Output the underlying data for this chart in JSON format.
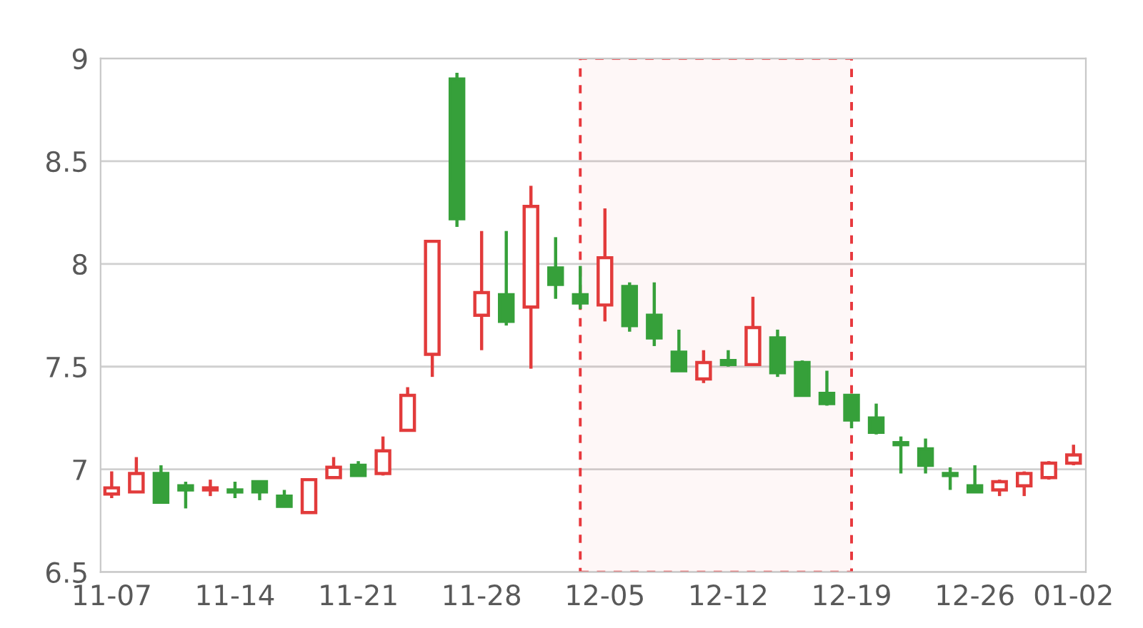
{
  "chart_data": {
    "type": "candlestick",
    "categories": [
      "11-07",
      null,
      null,
      null,
      null,
      "11-14",
      null,
      null,
      null,
      null,
      "11-21",
      null,
      null,
      null,
      null,
      "11-28",
      null,
      null,
      null,
      null,
      "12-05",
      null,
      null,
      null,
      null,
      "12-12",
      null,
      null,
      null,
      null,
      "12-19",
      null,
      null,
      null,
      null,
      "12-26",
      null,
      null,
      null,
      "01-02"
    ],
    "ohlc": [
      [
        6.88,
        6.99,
        6.86,
        6.91
      ],
      [
        6.89,
        7.06,
        6.89,
        6.98
      ],
      [
        6.98,
        7.02,
        6.84,
        6.84
      ],
      [
        6.92,
        6.94,
        6.81,
        6.9
      ],
      [
        6.9,
        6.95,
        6.87,
        6.91
      ],
      [
        6.9,
        6.94,
        6.86,
        6.89
      ],
      [
        6.94,
        6.94,
        6.85,
        6.89
      ],
      [
        6.87,
        6.9,
        6.82,
        6.82
      ],
      [
        6.79,
        6.95,
        6.79,
        6.95
      ],
      [
        6.96,
        7.06,
        6.96,
        7.01
      ],
      [
        7.02,
        7.04,
        6.97,
        6.97
      ],
      [
        6.98,
        7.16,
        6.97,
        7.09
      ],
      [
        7.19,
        7.4,
        7.19,
        7.36
      ],
      [
        7.56,
        8.11,
        7.45,
        8.11
      ],
      [
        8.9,
        8.93,
        8.18,
        8.22
      ],
      [
        7.75,
        8.16,
        7.58,
        7.86
      ],
      [
        7.85,
        8.16,
        7.7,
        7.72
      ],
      [
        7.79,
        8.38,
        7.49,
        8.28
      ],
      [
        7.98,
        8.13,
        7.83,
        7.9
      ],
      [
        7.85,
        7.99,
        7.78,
        7.81
      ],
      [
        7.8,
        8.27,
        7.72,
        8.03
      ],
      [
        7.89,
        7.91,
        7.67,
        7.7
      ],
      [
        7.75,
        7.91,
        7.6,
        7.64
      ],
      [
        7.57,
        7.68,
        7.48,
        7.48
      ],
      [
        7.44,
        7.58,
        7.42,
        7.52
      ],
      [
        7.53,
        7.58,
        7.5,
        7.51
      ],
      [
        7.51,
        7.84,
        7.51,
        7.69
      ],
      [
        7.64,
        7.68,
        7.45,
        7.47
      ],
      [
        7.52,
        7.53,
        7.36,
        7.36
      ],
      [
        7.37,
        7.48,
        7.31,
        7.32
      ],
      [
        7.36,
        7.36,
        7.2,
        7.24
      ],
      [
        7.25,
        7.32,
        7.17,
        7.18
      ],
      [
        7.13,
        7.16,
        6.98,
        7.12
      ],
      [
        7.1,
        7.15,
        6.98,
        7.02
      ],
      [
        6.98,
        7.01,
        6.9,
        6.97
      ],
      [
        6.92,
        7.02,
        6.89,
        6.89
      ],
      [
        6.9,
        6.95,
        6.87,
        6.94
      ],
      [
        6.92,
        6.99,
        6.87,
        6.98
      ],
      [
        6.96,
        7.04,
        6.95,
        7.03
      ],
      [
        7.03,
        7.12,
        7.02,
        7.07
      ]
    ],
    "colors": [
      "#e23b3b",
      "#e23b3b",
      "#36a03a",
      "#36a03a",
      "#e23b3b",
      "#36a03a",
      "#36a03a",
      "#36a03a",
      "#e23b3b",
      "#e23b3b",
      "#36a03a",
      "#e23b3b",
      "#e23b3b",
      "#e23b3b",
      "#36a03a",
      "#e23b3b",
      "#36a03a",
      "#e23b3b",
      "#36a03a",
      "#36a03a",
      "#e23b3b",
      "#36a03a",
      "#36a03a",
      "#36a03a",
      "#e23b3b",
      "#36a03a",
      "#e23b3b",
      "#36a03a",
      "#36a03a",
      "#36a03a",
      "#36a03a",
      "#36a03a",
      "#36a03a",
      "#36a03a",
      "#36a03a",
      "#36a03a",
      "#e23b3b",
      "#e23b3b",
      "#e23b3b",
      "#e23b3b"
    ],
    "ylim": [
      6.5,
      9
    ],
    "yticks": [
      6.5,
      7,
      7.5,
      8,
      8.5,
      9
    ],
    "grid": "y"
  }
}
